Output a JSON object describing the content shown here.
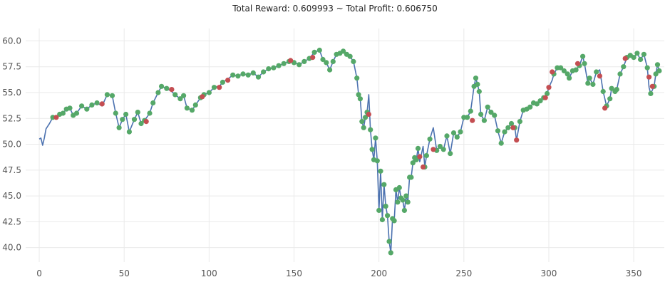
{
  "chart_data": {
    "type": "line",
    "title": "Total Reward: 0.609993 ~ Total Profit: 0.606750",
    "xlabel": "",
    "ylabel": "",
    "xlim": [
      -8,
      368
    ],
    "ylim": [
      38.6,
      61.2
    ],
    "x_ticks": [
      0,
      50,
      100,
      150,
      200,
      250,
      300,
      350
    ],
    "y_ticks": [
      40.0,
      42.5,
      45.0,
      47.5,
      50.0,
      52.5,
      55.0,
      57.5,
      60.0
    ],
    "grid": true,
    "legend": "none",
    "colors": {
      "line": "#4c72b0",
      "long": "#55a868",
      "short": "#c44e52",
      "grid": "#eaeaea"
    },
    "anchors": [
      [
        0,
        50.5
      ],
      [
        1,
        50.6
      ],
      [
        2,
        49.9
      ],
      [
        3,
        50.6
      ],
      [
        4,
        51.5
      ],
      [
        6,
        52.0
      ],
      [
        8,
        52.6
      ],
      [
        10,
        52.5
      ],
      [
        12,
        52.9
      ],
      [
        14,
        53.0
      ],
      [
        16,
        53.4
      ],
      [
        18,
        53.5
      ],
      [
        20,
        52.8
      ],
      [
        22,
        53.0
      ],
      [
        25,
        53.7
      ],
      [
        28,
        53.4
      ],
      [
        31,
        53.8
      ],
      [
        34,
        54.0
      ],
      [
        37,
        53.7
      ],
      [
        40,
        54.8
      ],
      [
        43,
        54.7
      ],
      [
        45,
        53.0
      ],
      [
        47,
        51.6
      ],
      [
        49,
        52.4
      ],
      [
        51,
        52.9
      ],
      [
        53,
        51.2
      ],
      [
        56,
        52.4
      ],
      [
        58,
        53.1
      ],
      [
        60,
        52.0
      ],
      [
        62,
        52.3
      ],
      [
        65,
        53.0
      ],
      [
        67,
        54.0
      ],
      [
        70,
        55.0
      ],
      [
        72,
        55.6
      ],
      [
        75,
        55.4
      ],
      [
        78,
        55.1
      ],
      [
        80,
        54.8
      ],
      [
        83,
        54.4
      ],
      [
        85,
        54.7
      ],
      [
        87,
        53.5
      ],
      [
        90,
        53.3
      ],
      [
        92,
        53.8
      ],
      [
        95,
        54.5
      ],
      [
        97,
        54.8
      ],
      [
        100,
        55.0
      ],
      [
        103,
        55.5
      ],
      [
        106,
        55.6
      ],
      [
        108,
        56.0
      ],
      [
        111,
        56.3
      ],
      [
        114,
        56.7
      ],
      [
        117,
        56.6
      ],
      [
        120,
        56.8
      ],
      [
        123,
        56.7
      ],
      [
        126,
        56.9
      ],
      [
        129,
        56.5
      ],
      [
        132,
        57.0
      ],
      [
        135,
        57.3
      ],
      [
        138,
        57.4
      ],
      [
        141,
        57.6
      ],
      [
        144,
        57.8
      ],
      [
        147,
        58.0
      ],
      [
        150,
        57.9
      ],
      [
        153,
        57.7
      ],
      [
        156,
        58.0
      ],
      [
        159,
        58.3
      ],
      [
        162,
        58.9
      ],
      [
        165,
        59.1
      ],
      [
        167,
        58.2
      ],
      [
        169,
        57.9
      ],
      [
        171,
        57.2
      ],
      [
        173,
        58.0
      ],
      [
        175,
        58.7
      ],
      [
        177,
        58.8
      ],
      [
        179,
        59.0
      ],
      [
        181,
        58.7
      ],
      [
        183,
        58.5
      ],
      [
        185,
        58.0
      ],
      [
        187,
        56.4
      ],
      [
        188,
        54.8
      ],
      [
        189,
        54.4
      ],
      [
        190,
        52.2
      ],
      [
        191,
        51.6
      ],
      [
        192,
        52.6
      ],
      [
        193,
        53.1
      ],
      [
        194,
        54.8
      ],
      [
        195,
        51.4
      ],
      [
        196,
        49.5
      ],
      [
        197,
        48.5
      ],
      [
        198,
        50.6
      ],
      [
        199,
        48.4
      ],
      [
        200,
        43.6
      ],
      [
        201,
        47.4
      ],
      [
        202,
        42.7
      ],
      [
        203,
        46.1
      ],
      [
        204,
        44.0
      ],
      [
        205,
        43.1
      ],
      [
        206,
        40.6
      ],
      [
        207,
        39.5
      ],
      [
        208,
        42.8
      ],
      [
        209,
        42.6
      ],
      [
        210,
        45.6
      ],
      [
        211,
        44.4
      ],
      [
        212,
        45.8
      ],
      [
        213,
        44.8
      ],
      [
        214,
        44.6
      ],
      [
        215,
        43.6
      ],
      [
        216,
        45.0
      ],
      [
        217,
        44.4
      ],
      [
        218,
        46.8
      ],
      [
        219,
        46.8
      ],
      [
        220,
        48.2
      ],
      [
        221,
        48.7
      ],
      [
        222,
        48.5
      ],
      [
        223,
        49.6
      ],
      [
        224,
        48.3
      ],
      [
        226,
        49.8
      ],
      [
        227,
        47.8
      ],
      [
        228,
        48.9
      ],
      [
        230,
        50.5
      ],
      [
        232,
        51.6
      ],
      [
        234,
        49.4
      ],
      [
        236,
        49.8
      ],
      [
        238,
        49.5
      ],
      [
        240,
        50.8
      ],
      [
        242,
        49.1
      ],
      [
        244,
        51.1
      ],
      [
        246,
        50.7
      ],
      [
        248,
        51.2
      ],
      [
        250,
        52.6
      ],
      [
        252,
        52.6
      ],
      [
        254,
        53.2
      ],
      [
        256,
        55.6
      ],
      [
        257,
        56.4
      ],
      [
        258,
        55.8
      ],
      [
        259,
        55.1
      ],
      [
        260,
        52.9
      ],
      [
        262,
        52.3
      ],
      [
        264,
        53.6
      ],
      [
        266,
        53.1
      ],
      [
        268,
        52.8
      ],
      [
        270,
        51.3
      ],
      [
        272,
        50.1
      ],
      [
        274,
        51.2
      ],
      [
        276,
        51.6
      ],
      [
        278,
        52.0
      ],
      [
        280,
        51.6
      ],
      [
        281,
        50.4
      ],
      [
        283,
        52.2
      ],
      [
        285,
        53.3
      ],
      [
        287,
        53.4
      ],
      [
        289,
        53.6
      ],
      [
        291,
        54.0
      ],
      [
        293,
        53.9
      ],
      [
        295,
        54.2
      ],
      [
        297,
        54.5
      ],
      [
        299,
        54.9
      ],
      [
        300,
        55.5
      ],
      [
        302,
        56.2
      ],
      [
        303,
        56.8
      ],
      [
        305,
        57.4
      ],
      [
        307,
        57.4
      ],
      [
        309,
        57.1
      ],
      [
        311,
        56.8
      ],
      [
        312,
        56.4
      ],
      [
        314,
        57.1
      ],
      [
        316,
        57.2
      ],
      [
        318,
        57.6
      ],
      [
        320,
        58.5
      ],
      [
        321,
        57.8
      ],
      [
        323,
        55.9
      ],
      [
        324,
        56.4
      ],
      [
        326,
        55.8
      ],
      [
        328,
        57.0
      ],
      [
        330,
        57.2
      ],
      [
        332,
        55.1
      ],
      [
        334,
        53.7
      ],
      [
        336,
        54.4
      ],
      [
        337,
        55.4
      ],
      [
        339,
        55.1
      ],
      [
        340,
        55.3
      ],
      [
        342,
        56.8
      ],
      [
        344,
        57.5
      ],
      [
        346,
        58.4
      ],
      [
        348,
        58.6
      ],
      [
        350,
        58.4
      ],
      [
        352,
        58.8
      ],
      [
        354,
        58.2
      ],
      [
        356,
        58.7
      ],
      [
        358,
        57.4
      ],
      [
        359,
        55.5
      ],
      [
        360,
        54.9
      ],
      [
        362,
        55.6
      ],
      [
        363,
        56.8
      ],
      [
        364,
        57.7
      ],
      [
        365,
        57.1
      ]
    ],
    "short_markers": [
      [
        10,
        52.6
      ],
      [
        37,
        53.9
      ],
      [
        63,
        52.2
      ],
      [
        78,
        55.3
      ],
      [
        96,
        54.6
      ],
      [
        106,
        55.5
      ],
      [
        111,
        56.2
      ],
      [
        148,
        58.1
      ],
      [
        161,
        58.4
      ],
      [
        194,
        52.9
      ],
      [
        224,
        48.8
      ],
      [
        226,
        47.8
      ],
      [
        232,
        49.5
      ],
      [
        255,
        52.3
      ],
      [
        279,
        51.6
      ],
      [
        281,
        50.4
      ],
      [
        298,
        54.5
      ],
      [
        300,
        55.5
      ],
      [
        302,
        57.0
      ],
      [
        317,
        57.8
      ],
      [
        330,
        56.6
      ],
      [
        333,
        53.5
      ],
      [
        345,
        58.3
      ],
      [
        359,
        56.5
      ],
      [
        361,
        55.6
      ]
    ]
  }
}
